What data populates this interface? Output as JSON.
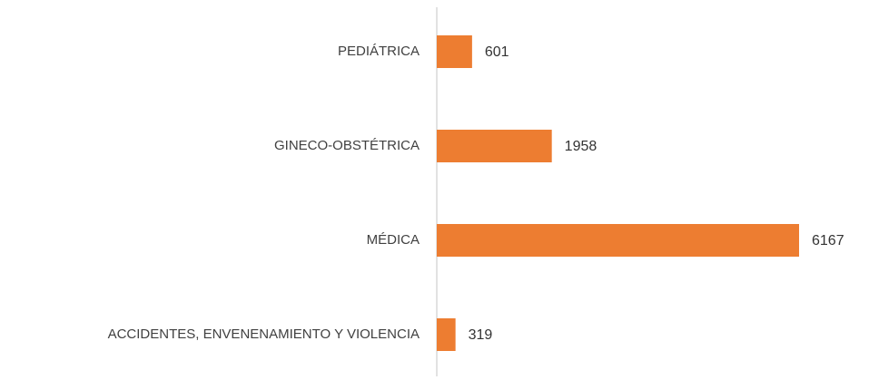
{
  "chart_data": {
    "type": "bar",
    "orientation": "horizontal",
    "categories": [
      "PEDIÁTRICA",
      "GINECO-OBSTÉTRICA",
      "MÉDICA",
      "ACCIDENTES, ENVENENAMIENTO Y VIOLENCIA"
    ],
    "values": [
      601,
      1958,
      6167,
      319
    ],
    "color": "#ed7d31",
    "grid": false
  }
}
